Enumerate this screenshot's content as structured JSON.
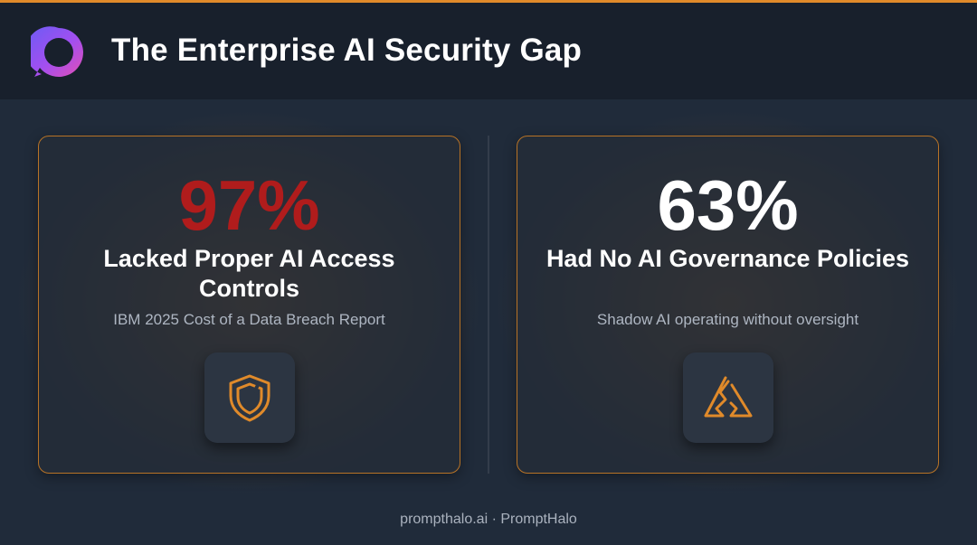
{
  "header": {
    "title": "The Enterprise AI Security Gap",
    "logo_icon": "halo-ring-logo"
  },
  "cards": [
    {
      "stat": "97%",
      "stat_color": "#b01c1c",
      "headline": "Lacked Proper AI Access Controls",
      "source": "IBM 2025 Cost of a Data Breach Report",
      "icon": "shield-icon"
    },
    {
      "stat": "63%",
      "stat_color": "#ffffff",
      "headline": "Had No AI Governance Policies",
      "source": "Shadow AI operating without oversight",
      "icon": "broken-warning-icon"
    }
  ],
  "footer": {
    "text": "prompthalo.ai · PromptHalo"
  },
  "colors": {
    "accent": "#e08a2a",
    "background": "#202b3a",
    "header_bg": "#18202c"
  }
}
